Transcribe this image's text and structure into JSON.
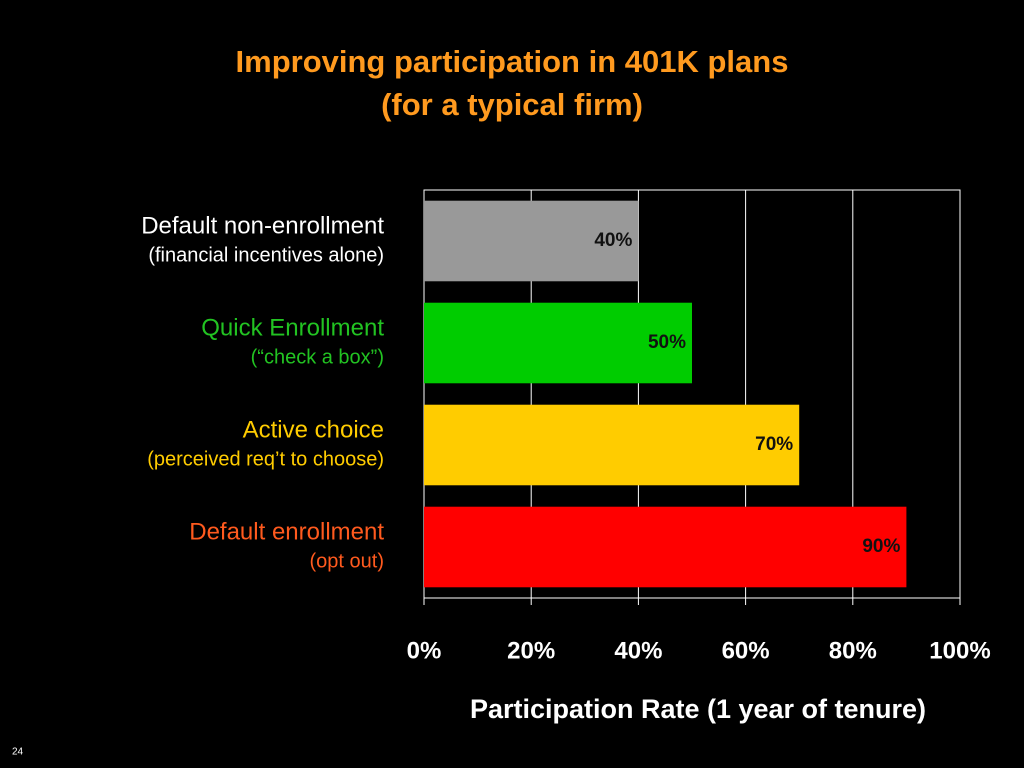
{
  "chart_data": {
    "type": "barh",
    "title": [
      "Improving participation in 401K plans",
      "(for a typical firm)"
    ],
    "categories": [
      "Default non-enrollment",
      "Quick Enrollment",
      "Active choice",
      "Default enrollment"
    ],
    "category_notes": [
      "(financial incentives alone)",
      "(“check a box”)",
      "(perceived req’t to choose)",
      "(opt out)"
    ],
    "category_colors": [
      "#ffffff",
      "#22c322",
      "#ffcc00",
      "#ff5a1e"
    ],
    "values": [
      40,
      50,
      70,
      90
    ],
    "value_labels": [
      "40%",
      "50%",
      "70%",
      "90%"
    ],
    "colors": [
      "#999999",
      "#00cc00",
      "#ffcc00",
      "#ff0000"
    ],
    "xlabel": "Participation Rate (1 year of tenure)",
    "xlim": [
      0,
      100
    ],
    "xticks": [
      {
        "value": 0,
        "label": "0%"
      },
      {
        "value": 20,
        "label": "20%"
      },
      {
        "value": 40,
        "label": "40%"
      },
      {
        "value": 60,
        "label": "60%"
      },
      {
        "value": 80,
        "label": "80%"
      },
      {
        "value": 100,
        "label": "100%"
      }
    ],
    "grid": true,
    "page_number": "24"
  }
}
